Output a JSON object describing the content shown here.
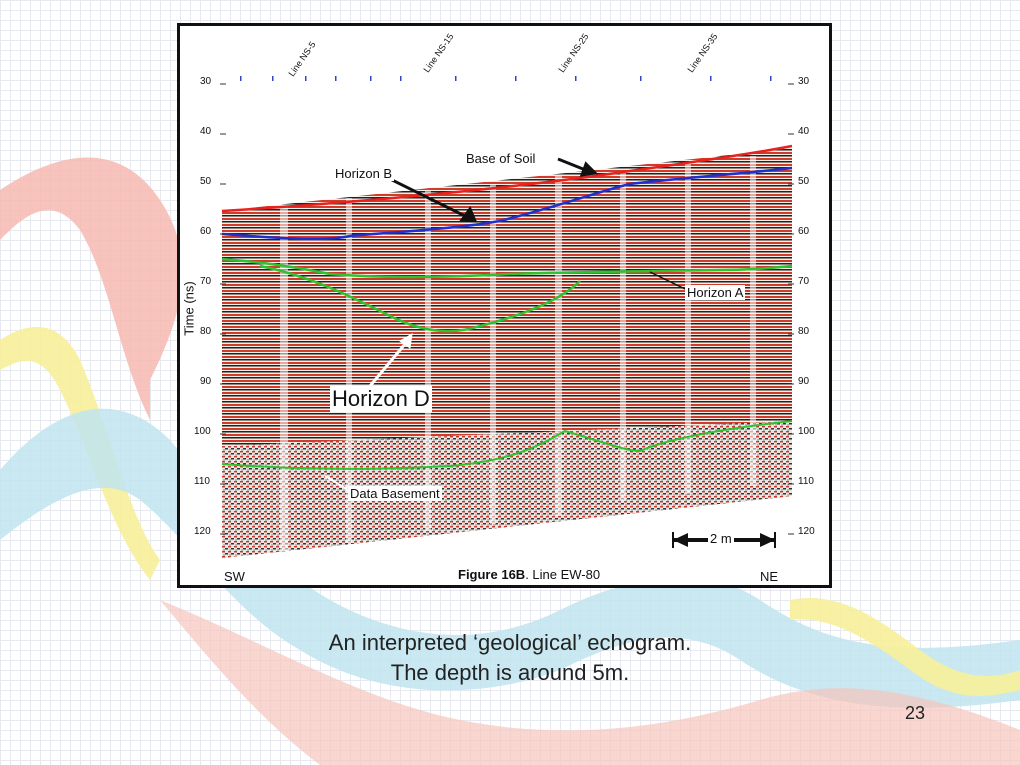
{
  "slide": {
    "caption_line1": "An interpreted ‘geological’ echogram.",
    "caption_line2": "The depth is around 5m.",
    "page_number": "23"
  },
  "figure": {
    "line_labels": [
      "Line NS-5",
      "Line NS-15",
      "Line NS-25",
      "Line NS-35"
    ],
    "y_axis_label": "Time (ns)",
    "y_ticks": [
      "30",
      "40",
      "50",
      "60",
      "70",
      "80",
      "90",
      "100",
      "110",
      "120"
    ],
    "annotations": {
      "base_of_soil": "Base of Soil",
      "horizon_b": "Horizon B",
      "horizon_a": "Horizon A",
      "horizon_d": "Horizon D",
      "data_basement": "Data Basement",
      "scale_bar": "2 m"
    },
    "caption_bold": "Figure 16B",
    "caption_rest": ". Line EW-80",
    "left_dir": "SW",
    "right_dir": "NE"
  }
}
